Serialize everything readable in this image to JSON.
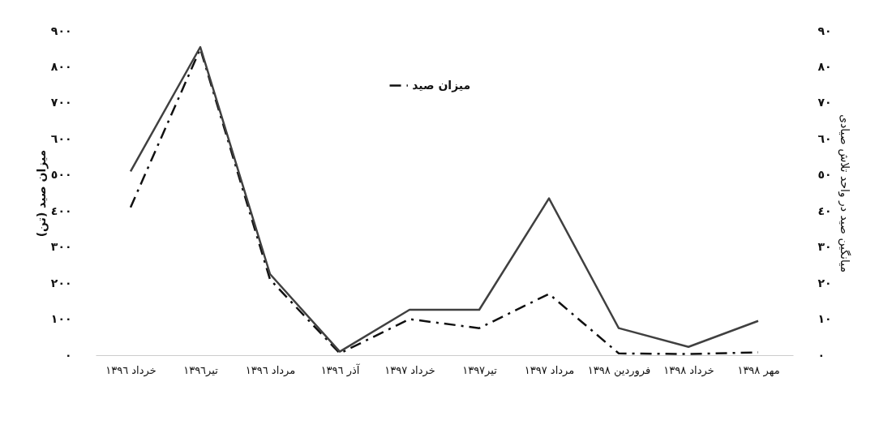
{
  "chart_data": {
    "type": "line",
    "categories": [
      "خرداد ١٣٩٦",
      "تیر١٣٩٦",
      "مرداد ١٣٩٦",
      "آذر ١٣٩٦",
      "خرداد ١٣٩٧",
      "تیر١٣٩٧",
      "مرداد ١٣٩٧",
      "فروردین ١٣٩٨",
      "خرداد ١٣٩٨",
      "مهر ١٣٩٨"
    ],
    "series": [
      {
        "name": "میزان صید",
        "color": "#111111",
        "line_style": "dashdot",
        "values": [
          410,
          850,
          210,
          5,
          100,
          75,
          170,
          5,
          3,
          8
        ]
      },
      {
        "color": "#404040",
        "line_style": "solid",
        "axis": "y2",
        "values": [
          51,
          85.5,
          22.5,
          1,
          12.6,
          12.6,
          43.5,
          7.5,
          2.3,
          9.5
        ]
      }
    ],
    "ylabel": "میزان صید (تن)",
    "y2label": "میانگین صید در واحد تلاش صیادی",
    "ylim": [
      0,
      900
    ],
    "yticks": [
      {
        "value": 0,
        "label": "٠"
      },
      {
        "value": 100,
        "label": "١٠٠"
      },
      {
        "value": 200,
        "label": "٢٠٠"
      },
      {
        "value": 300,
        "label": "٣٠٠"
      },
      {
        "value": 400,
        "label": "٤٠٠"
      },
      {
        "value": 500,
        "label": "٥٠٠"
      },
      {
        "value": 600,
        "label": "٦٠٠"
      },
      {
        "value": 700,
        "label": "٧٠٠"
      },
      {
        "value": 800,
        "label": "٨٠٠"
      },
      {
        "value": 900,
        "label": "٩٠٠"
      }
    ],
    "y2lim": [
      0,
      90
    ],
    "y2ticks": [
      {
        "value": 0,
        "label": "٠"
      },
      {
        "value": 10,
        "label": "١٠"
      },
      {
        "value": 20,
        "label": "٢٠"
      },
      {
        "value": 30,
        "label": "٣٠"
      },
      {
        "value": 40,
        "label": "٤٠"
      },
      {
        "value": 50,
        "label": "٥٠"
      },
      {
        "value": 60,
        "label": "٦٠"
      },
      {
        "value": 70,
        "label": "٧٠"
      },
      {
        "value": 80,
        "label": "٨٠"
      },
      {
        "value": 90,
        "label": "٩٠"
      }
    ],
    "grid": false,
    "legend": "top",
    "marker": "none"
  }
}
